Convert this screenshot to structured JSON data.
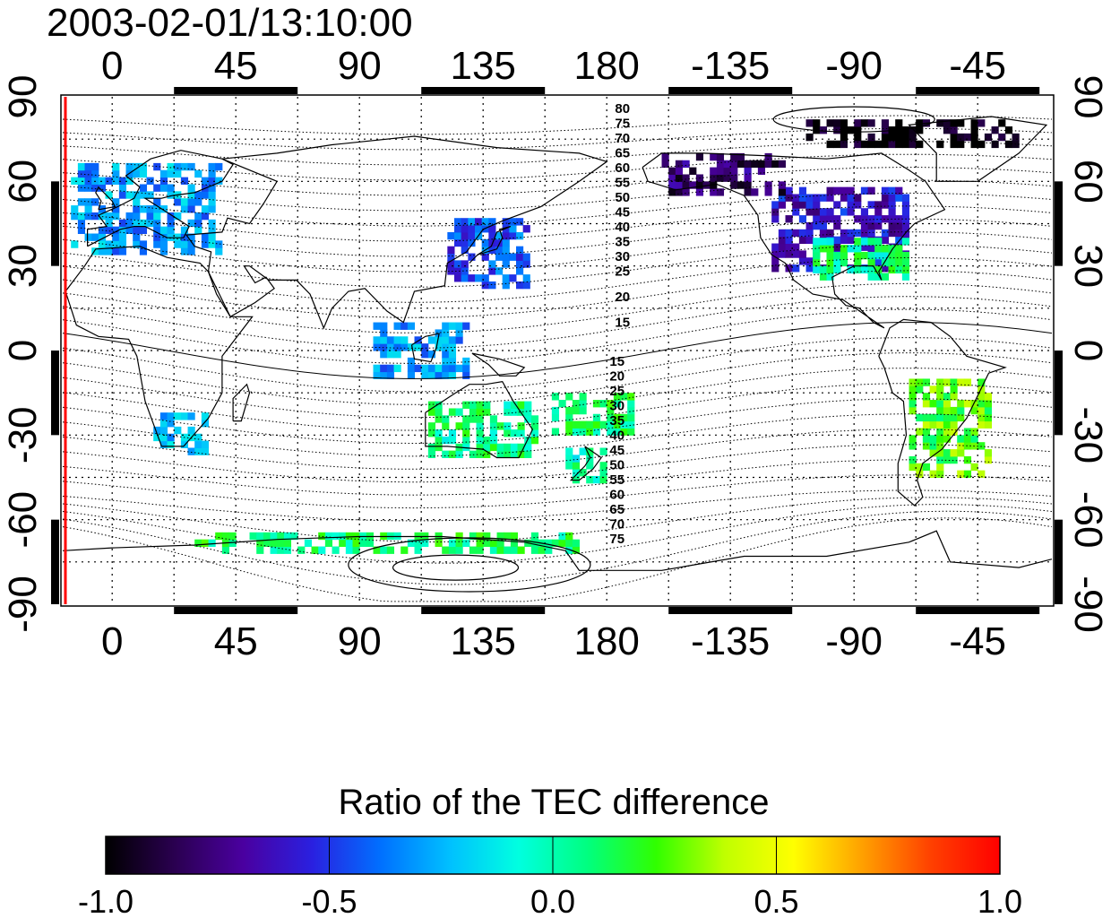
{
  "title": "2003-02-01/13:10:00",
  "map": {
    "lon_ticks": [
      {
        "lon": 0,
        "label": "0"
      },
      {
        "lon": 45,
        "label": "45"
      },
      {
        "lon": 90,
        "label": "90"
      },
      {
        "lon": 135,
        "label": "135"
      },
      {
        "lon": 180,
        "label": "180"
      },
      {
        "lon": 225,
        "label": "-135"
      },
      {
        "lon": 270,
        "label": "-90"
      },
      {
        "lon": 315,
        "label": "-45"
      }
    ],
    "lat_ticks": [
      {
        "lat": 90,
        "label": "90"
      },
      {
        "lat": 60,
        "label": "60"
      },
      {
        "lat": 30,
        "label": "30"
      },
      {
        "lat": 0,
        "label": "0"
      },
      {
        "lat": -30,
        "label": "-30"
      },
      {
        "lat": -60,
        "label": "-60"
      },
      {
        "lat": -90,
        "label": "-90"
      }
    ],
    "lon_range": [
      -18,
      342
    ],
    "lat_range": [
      -90,
      90
    ],
    "terminator_lon": -16,
    "contour_labels_north": [
      "80",
      "75",
      "70",
      "65",
      "60",
      "55",
      "50",
      "45",
      "40",
      "35",
      "30",
      "25",
      "20",
      "15"
    ],
    "contour_labels_south": [
      "15",
      "20",
      "25",
      "30",
      "35",
      "40",
      "45",
      "50",
      "55",
      "60",
      "65",
      "70",
      "75"
    ],
    "contour_label_lon": 183
  },
  "colorbar": {
    "title": "Ratio of the TEC difference",
    "min": -1.0,
    "max": 1.0,
    "ticks": [
      "-1.0",
      "-0.5",
      "0.0",
      "0.5",
      "1.0"
    ],
    "colors": [
      "#000000",
      "#2a0050",
      "#4a00a0",
      "#2a20e0",
      "#0070ff",
      "#00c0ff",
      "#00ffe0",
      "#00ff80",
      "#30ff00",
      "#c0ff00",
      "#ffff00",
      "#ffa000",
      "#ff4000",
      "#ff0000"
    ]
  },
  "data_regions": [
    {
      "name": "europe",
      "lon": [
        -15,
        40
      ],
      "lat": [
        34,
        66
      ],
      "v": -0.3
    },
    {
      "name": "east-asia",
      "lon": [
        122,
        150
      ],
      "lat": [
        22,
        46
      ],
      "v": -0.45
    },
    {
      "name": "north-america",
      "lon": [
        240,
        290
      ],
      "lat": [
        28,
        58
      ],
      "v": -0.6
    },
    {
      "name": "us-south",
      "lon": [
        255,
        290
      ],
      "lat": [
        25,
        40
      ],
      "v": 0.05
    },
    {
      "name": "alaska",
      "lon": [
        200,
        245
      ],
      "lat": [
        55,
        70
      ],
      "v": -0.8
    },
    {
      "name": "south-america",
      "lon": [
        290,
        320
      ],
      "lat": [
        -45,
        -10
      ],
      "v": 0.25
    },
    {
      "name": "south-africa",
      "lon": [
        15,
        35
      ],
      "lat": [
        -37,
        -22
      ],
      "v": -0.2
    },
    {
      "name": "australia",
      "lon": [
        115,
        155
      ],
      "lat": [
        -38,
        -20
      ],
      "v": 0.05
    },
    {
      "name": "new-zealand",
      "lon": [
        165,
        180
      ],
      "lat": [
        -47,
        -35
      ],
      "v": 0.0
    },
    {
      "name": "antarctic-coast",
      "lon": [
        30,
        170
      ],
      "lat": [
        -72,
        -66
      ],
      "v": 0.1
    },
    {
      "name": "arctic",
      "lon": [
        250,
        330
      ],
      "lat": [
        72,
        82
      ],
      "v": -1.0
    },
    {
      "name": "se-asia",
      "lon": [
        95,
        130
      ],
      "lat": [
        -10,
        10
      ],
      "v": -0.3
    },
    {
      "name": "pacific",
      "lon": [
        160,
        190
      ],
      "lat": [
        -30,
        -15
      ],
      "v": 0.1
    }
  ]
}
